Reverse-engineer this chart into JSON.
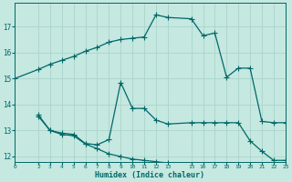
{
  "background_color": "#c5e8e0",
  "grid_color": "#aad4cc",
  "line_color": "#006868",
  "xlabel": "Humidex (Indice chaleur)",
  "xlim": [
    0,
    23
  ],
  "ylim": [
    11.8,
    17.9
  ],
  "xticks": [
    0,
    2,
    3,
    4,
    5,
    6,
    7,
    8,
    9,
    10,
    11,
    12,
    13,
    15,
    16,
    17,
    18,
    19,
    20,
    21,
    22,
    23
  ],
  "yticks": [
    12,
    13,
    14,
    15,
    16,
    17
  ],
  "series1_x": [
    0,
    2,
    3,
    4,
    5,
    6,
    7,
    8,
    9,
    10,
    11,
    12,
    13,
    15,
    16,
    17,
    18,
    19,
    20,
    21,
    22,
    23
  ],
  "series1_y": [
    15.0,
    15.35,
    15.55,
    15.7,
    15.85,
    16.05,
    16.2,
    16.4,
    16.5,
    16.55,
    16.6,
    17.45,
    17.35,
    17.3,
    16.65,
    16.75,
    15.05,
    15.4,
    15.4,
    13.35,
    13.3,
    13.3
  ],
  "series2_x": [
    2,
    3,
    4,
    5,
    6,
    7,
    8,
    9,
    10,
    11,
    12,
    13,
    15,
    16,
    17,
    18,
    19,
    20,
    21,
    22,
    23
  ],
  "series2_y": [
    13.6,
    13.0,
    12.9,
    12.85,
    12.5,
    12.45,
    12.65,
    14.85,
    13.85,
    13.85,
    13.4,
    13.25,
    13.3,
    13.3,
    13.3,
    13.3,
    13.3,
    12.6,
    12.2,
    11.85,
    11.85
  ],
  "series3_x": [
    2,
    3,
    4,
    5,
    6,
    7,
    8,
    9,
    10,
    11,
    12,
    13,
    15,
    16,
    17,
    18,
    19,
    20,
    21,
    22,
    23
  ],
  "series3_y": [
    13.55,
    13.0,
    12.85,
    12.8,
    12.48,
    12.3,
    12.1,
    12.0,
    11.9,
    11.85,
    11.8,
    11.75,
    11.7,
    11.7,
    11.7,
    11.7,
    11.7,
    11.7,
    11.7,
    11.7,
    11.7
  ]
}
